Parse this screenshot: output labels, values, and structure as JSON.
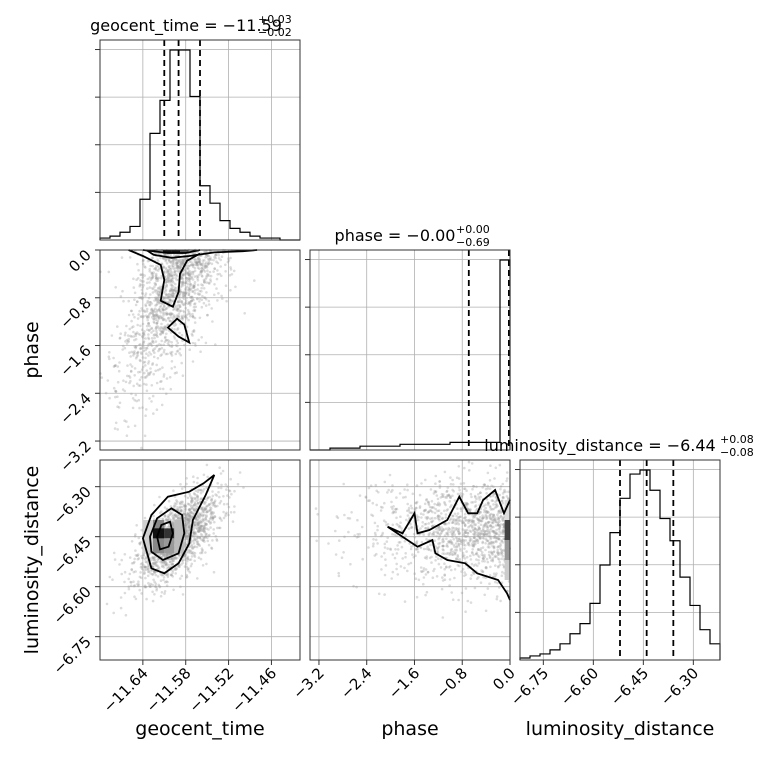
{
  "chart_data": {
    "type": "corner",
    "parameters": [
      "geocent_time",
      "phase",
      "luminosity_distance"
    ],
    "axis_labels": {
      "geocent_time": "geocent_time",
      "phase": "phase",
      "luminosity_distance": "luminosity_distance"
    },
    "titles": [
      {
        "param": "geocent_time",
        "text": "geocent_time = −11.59",
        "sup": "+0.03",
        "sub": "−0.02"
      },
      {
        "param": "phase",
        "text": "phase = −0.00",
        "sup": "+0.00",
        "sub": "−0.69"
      },
      {
        "param": "luminosity_distance",
        "text": "luminosity_distance = −6.44",
        "sup": "+0.08",
        "sub": "−0.08"
      }
    ],
    "ranges": {
      "geocent_time": [
        -11.7,
        -11.42
      ],
      "phase": [
        -3.35,
        0.0
      ],
      "luminosity_distance": [
        -6.82,
        -6.22
      ]
    },
    "ticks": {
      "geocent_time": [
        -11.64,
        -11.58,
        -11.52,
        -11.46
      ],
      "phase": [
        -3.2,
        -2.4,
        -1.6,
        -0.8,
        0.0
      ],
      "luminosity_distance": [
        -6.75,
        -6.6,
        -6.45,
        -6.3
      ]
    },
    "tick_labels": {
      "geocent_time": [
        "−11.64",
        "−11.58",
        "−11.52",
        "−11.46"
      ],
      "phase": [
        "−3.2",
        "−2.4",
        "−1.6",
        "−0.8",
        "0.0"
      ],
      "luminosity_distance": [
        "−6.75",
        "−6.60",
        "−6.45",
        "−6.30"
      ]
    },
    "quantiles": {
      "geocent_time": [
        -11.61,
        -11.59,
        -11.56
      ],
      "phase": [
        -0.69,
        0.0,
        0.0
      ],
      "luminosity_distance": [
        -6.52,
        -6.44,
        -6.36
      ]
    },
    "histograms": {
      "geocent_time": {
        "edges": [
          -11.7,
          -11.686,
          -11.672,
          -11.658,
          -11.644,
          -11.63,
          -11.616,
          -11.602,
          -11.588,
          -11.574,
          -11.56,
          -11.546,
          -11.532,
          -11.518,
          -11.504,
          -11.49,
          -11.476,
          -11.462,
          -11.448,
          -11.434,
          -11.42
        ],
        "counts": [
          1,
          2,
          4,
          7,
          21,
          55,
          72,
          98,
          98,
          74,
          28,
          19,
          10,
          6,
          4,
          2,
          1,
          1,
          0,
          0
        ]
      },
      "phase": {
        "edges": [
          -3.35,
          -3.1825,
          -3.015,
          -2.8475,
          -2.68,
          -2.5125,
          -2.345,
          -2.1775,
          -2.01,
          -1.8425,
          -1.675,
          -1.5075,
          -1.34,
          -1.1725,
          -1.005,
          -0.8375,
          -0.67,
          -0.5025,
          -0.335,
          -0.1675,
          0.0
        ],
        "counts": [
          0,
          0,
          1,
          1,
          1,
          2,
          2,
          2,
          2,
          3,
          3,
          3,
          3,
          3,
          4,
          4,
          4,
          4,
          4,
          100
        ]
      },
      "luminosity_distance": {
        "edges": [
          -6.82,
          -6.79,
          -6.76,
          -6.73,
          -6.7,
          -6.67,
          -6.64,
          -6.61,
          -6.58,
          -6.55,
          -6.52,
          -6.49,
          -6.46,
          -6.43,
          -6.4,
          -6.37,
          -6.34,
          -6.31,
          -6.28,
          -6.25,
          -6.22
        ],
        "counts": [
          1,
          2,
          3,
          5,
          8,
          13,
          18,
          28,
          47,
          63,
          80,
          92,
          94,
          84,
          70,
          59,
          41,
          27,
          15,
          8
        ]
      }
    }
  }
}
